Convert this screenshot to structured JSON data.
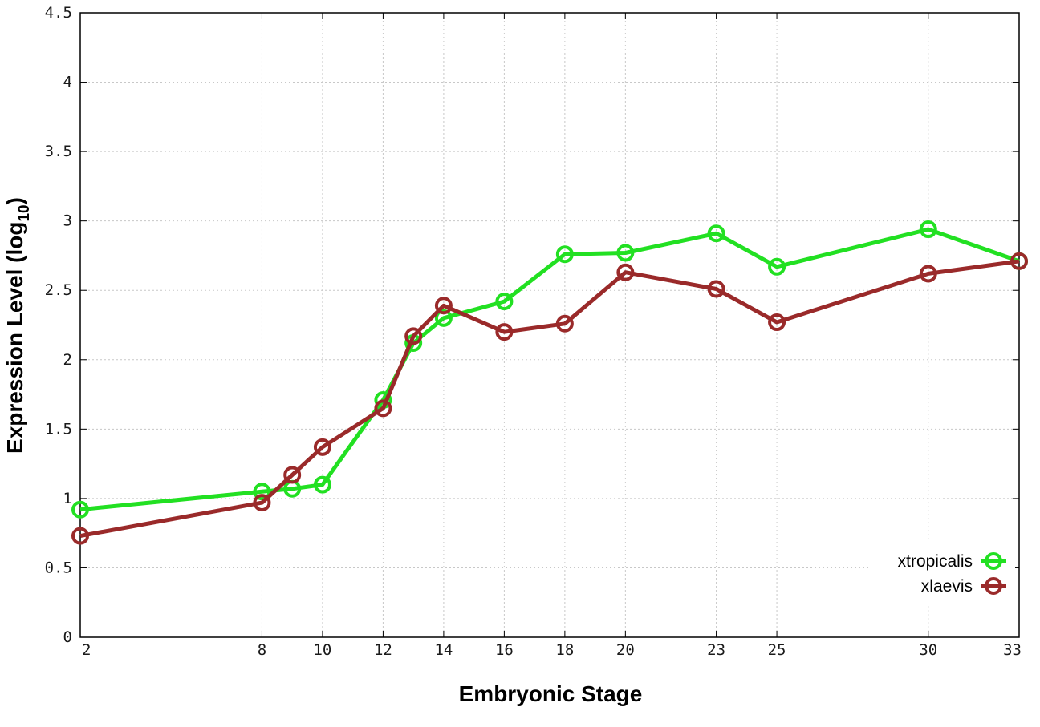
{
  "chart_data": {
    "type": "line",
    "title": "",
    "xlabel": "Embryonic Stage",
    "ylabel": "Expression Level (log",
    "ylabel_subscript": "10",
    "ylabel_close": ")",
    "x_ticks": [
      2,
      8,
      10,
      12,
      14,
      16,
      18,
      20,
      23,
      25,
      30,
      33
    ],
    "y_ticks": [
      "0",
      "0.5",
      "1",
      "1.5",
      "2",
      "2.5",
      "3",
      "3.5",
      "4",
      "4.5"
    ],
    "xlim": [
      2,
      33
    ],
    "ylim": [
      0,
      4.5
    ],
    "grid": true,
    "legend_position": "bottom-right",
    "series": [
      {
        "name": "xtropicalis",
        "color": "#22e022",
        "x": [
          2,
          8,
          9,
          10,
          12,
          13,
          14,
          16,
          18,
          20,
          23,
          25,
          30,
          33
        ],
        "y": [
          0.92,
          1.05,
          1.07,
          1.1,
          1.71,
          2.12,
          2.3,
          2.42,
          2.76,
          2.77,
          2.91,
          2.67,
          2.94,
          2.71
        ]
      },
      {
        "name": "xlaevis",
        "color": "#9a2a2a",
        "x": [
          2,
          8,
          9,
          10,
          12,
          13,
          14,
          16,
          18,
          20,
          23,
          25,
          30,
          33
        ],
        "y": [
          0.73,
          0.97,
          1.17,
          1.37,
          1.65,
          2.17,
          2.39,
          2.2,
          2.26,
          2.63,
          2.51,
          2.27,
          2.62,
          2.71
        ]
      }
    ]
  }
}
